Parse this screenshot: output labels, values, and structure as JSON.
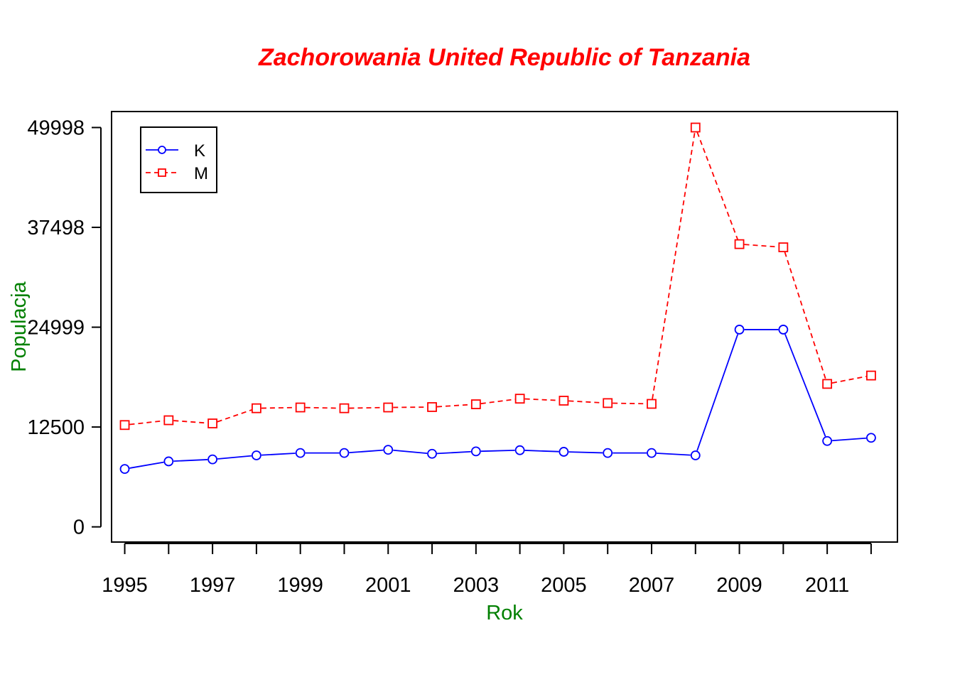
{
  "colors": {
    "title": "#ff0000",
    "axis_labels": "#008000",
    "series_K": "#0000ff",
    "series_M": "#ff0000",
    "axes": "#000000"
  },
  "chart_data": {
    "type": "line",
    "title": "Zachorowania United Republic of Tanzania",
    "xlabel": "Rok",
    "ylabel": "Populacja",
    "x": [
      1995,
      1996,
      1997,
      1998,
      1999,
      2000,
      2001,
      2002,
      2003,
      2004,
      2005,
      2006,
      2007,
      2008,
      2009,
      2010,
      2011,
      2012
    ],
    "x_tick_labels": [
      "1995",
      "1997",
      "1999",
      "2001",
      "2003",
      "2005",
      "2007",
      "2009",
      "2011"
    ],
    "y_tick_labels": [
      "0",
      "12500",
      "24999",
      "37498",
      "49998"
    ],
    "y_ticks": [
      0,
      12500,
      24999,
      37498,
      49998
    ],
    "xlim": [
      1994.7,
      2012.6
    ],
    "ylim": [
      -1900,
      52000
    ],
    "grid": false,
    "legend_position": "top-left",
    "series": [
      {
        "name": "K",
        "line_style": "solid",
        "marker": "circle",
        "values": [
          7250,
          8200,
          8450,
          8950,
          9250,
          9250,
          9650,
          9150,
          9450,
          9600,
          9400,
          9250,
          9250,
          8950,
          24700,
          24700,
          10750,
          11150
        ]
      },
      {
        "name": "M",
        "line_style": "dashed",
        "marker": "square",
        "values": [
          12750,
          13350,
          12950,
          14850,
          14950,
          14850,
          14950,
          15000,
          15350,
          16050,
          15800,
          15500,
          15400,
          49998,
          35400,
          35000,
          17900,
          18950
        ]
      }
    ]
  }
}
